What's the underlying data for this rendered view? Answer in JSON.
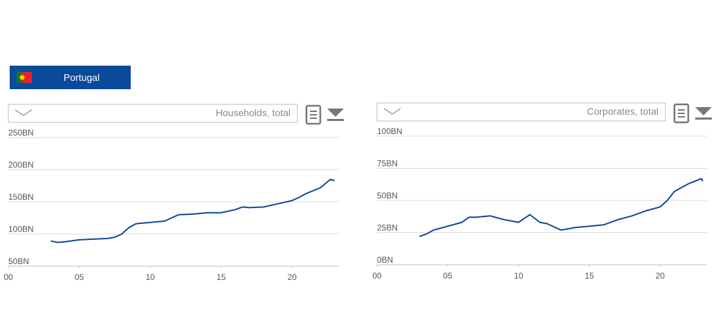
{
  "country": "Portugal",
  "chart_data": [
    {
      "type": "line",
      "dropdown": "Households, total",
      "color": "#0d4a94",
      "x": [
        2003,
        2003.5,
        2004,
        2005,
        2006,
        2007,
        2007.5,
        2008,
        2008.5,
        2009,
        2010,
        2011,
        2012,
        2013,
        2014,
        2015,
        2016,
        2016.5,
        2017,
        2018,
        2019,
        2020,
        2020.5,
        2021,
        2022,
        2022.7,
        2023
      ],
      "values": [
        89,
        87,
        88,
        91,
        92,
        93,
        95,
        100,
        110,
        116,
        118,
        120,
        130,
        131,
        133,
        133,
        138,
        142,
        141,
        142,
        147,
        152,
        157,
        163,
        172,
        185,
        183
      ],
      "xlim": [
        2000,
        2023.3
      ],
      "ylim": [
        50,
        250
      ],
      "xticks": [
        {
          "value": 2000,
          "label": "00"
        },
        {
          "value": 2005,
          "label": "05"
        },
        {
          "value": 2010,
          "label": "10"
        },
        {
          "value": 2015,
          "label": "15"
        },
        {
          "value": 2020,
          "label": "20"
        }
      ],
      "yticks": [
        {
          "value": 50,
          "label": "50BN"
        },
        {
          "value": 100,
          "label": "100BN"
        },
        {
          "value": 150,
          "label": "150BN"
        },
        {
          "value": 200,
          "label": "200BN"
        },
        {
          "value": 250,
          "label": "250BN"
        }
      ],
      "grid": true
    },
    {
      "type": "line",
      "dropdown": "Corporates, total",
      "color": "#0d4a94",
      "x": [
        2003,
        2003.5,
        2004,
        2005,
        2006,
        2006.5,
        2007,
        2008,
        2009,
        2010,
        2010.8,
        2011.5,
        2012,
        2013,
        2014,
        2015,
        2016,
        2017,
        2018,
        2019,
        2020,
        2020.5,
        2021,
        2022,
        2022.9,
        2023
      ],
      "values": [
        22,
        24,
        27,
        30,
        33,
        37,
        37,
        38,
        35,
        33,
        39,
        33,
        32,
        27,
        29,
        30,
        31,
        35,
        38,
        42,
        45,
        50,
        57,
        63,
        67,
        65
      ],
      "xlim": [
        2000,
        2023.3
      ],
      "ylim": [
        0,
        100
      ],
      "xticks": [
        {
          "value": 2000,
          "label": "00"
        },
        {
          "value": 2005,
          "label": "05"
        },
        {
          "value": 2010,
          "label": "10"
        },
        {
          "value": 2015,
          "label": "15"
        },
        {
          "value": 2020,
          "label": "20"
        }
      ],
      "yticks": [
        {
          "value": 0,
          "label": "0BN"
        },
        {
          "value": 25,
          "label": "25BN"
        },
        {
          "value": 50,
          "label": "50BN"
        },
        {
          "value": 75,
          "label": "75BN"
        },
        {
          "value": 100,
          "label": "100BN"
        }
      ],
      "grid": true
    }
  ]
}
